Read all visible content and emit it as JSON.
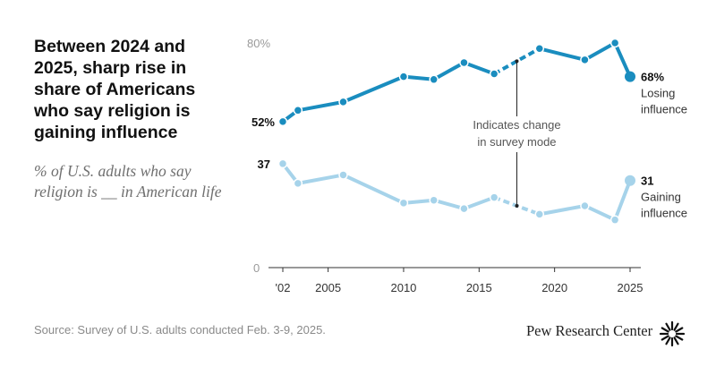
{
  "title": "Between 2024 and 2025, sharp rise in share of Americans who say religion is gaining influence",
  "subtitle": "% of U.S. adults who say religion is __ in American life",
  "source": "Source: Survey of U.S. adults conducted Feb. 3-9, 2025.",
  "brand": "Pew Research Center",
  "colors": {
    "losing": "#1a8dbf",
    "gaining": "#a6d3ea",
    "axis": "#333333"
  },
  "chart_data": {
    "type": "line",
    "xlim": [
      2002,
      2025
    ],
    "ylim": [
      0,
      80
    ],
    "x_ticks": [
      "'02",
      "2005",
      "2010",
      "2015",
      "2020",
      "2025"
    ],
    "y_ticks": [
      "80%",
      "0"
    ],
    "survey_mode_change_between": [
      2016,
      2019
    ],
    "series": [
      {
        "name": "Losing influence",
        "x": [
          2002,
          2003,
          2006,
          2010,
          2012,
          2014,
          2016,
          2019,
          2022,
          2024,
          2025
        ],
        "values": [
          52,
          56,
          59,
          68,
          67,
          73,
          69,
          78,
          74,
          80,
          68
        ],
        "end_label": "68%",
        "start_label": "52%"
      },
      {
        "name": "Gaining influence",
        "x": [
          2002,
          2003,
          2006,
          2010,
          2012,
          2014,
          2016,
          2019,
          2022,
          2024,
          2025
        ],
        "values": [
          37,
          30,
          33,
          23,
          24,
          21,
          25,
          19,
          22,
          17,
          31
        ],
        "end_label": "31",
        "start_label": "37"
      }
    ],
    "annotation": "Indicates change in survey mode",
    "annotation_lines": [
      "Indicates change",
      "in survey mode"
    ],
    "series_labels": {
      "losing": [
        "Losing",
        "influence"
      ],
      "gaining": [
        "Gaining",
        "influence"
      ]
    }
  }
}
